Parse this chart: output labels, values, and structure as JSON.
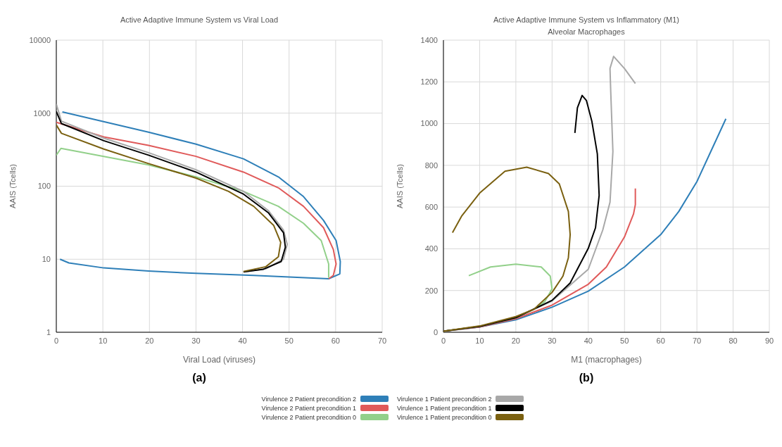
{
  "chart_data": [
    {
      "type": "line",
      "title": "Active Adaptive Immune System vs Viral Load",
      "xlabel": "Viral Load (viruses)",
      "ylabel": "AAIS (Tcells)",
      "annotations": [
        "(a)"
      ],
      "log": "y",
      "xlim": [
        0,
        70
      ],
      "xticks": [
        0,
        10,
        20,
        30,
        40,
        50,
        60,
        70
      ],
      "ylim": [
        1,
        10000
      ],
      "yticks": [
        1,
        10,
        100,
        1000,
        10000
      ],
      "grid": true,
      "legend": "bottom",
      "marker": "none",
      "line_style": "solid",
      "series": [
        {
          "name": "Virulence 2 Patient precondition 2",
          "color": "#2e7fb8",
          "x": [
            1.3,
            19.8,
            30,
            40.2,
            47.7,
            53.1,
            57.4,
            60.1,
            61,
            60.9,
            58.5,
            42.4,
            30,
            19.8,
            10.2,
            2.7,
            0.8
          ],
          "values": [
            1040,
            550,
            376,
            237,
            134,
            72,
            34,
            18,
            9.3,
            6.3,
            5.4,
            6.0,
            6.4,
            6.9,
            7.6,
            8.9,
            10
          ]
        },
        {
          "name": "Virulence 2 Patient precondition 1",
          "color": "#e05a5a",
          "x": [
            0,
            10.2,
            19.8,
            30,
            40.2,
            47.7,
            53.1,
            57.4,
            59.5,
            60.1,
            59.5,
            58.5
          ],
          "values": [
            750,
            473,
            362,
            256,
            156,
            95,
            53,
            27,
            13.6,
            8.6,
            6.0,
            5.4
          ]
        },
        {
          "name": "Virulence 2 Patient precondition 0",
          "color": "#92d08a",
          "x": [
            0,
            1,
            10.2,
            19.8,
            30,
            40.2,
            47.7,
            53.1,
            56.9,
            58.5,
            58.5
          ],
          "values": [
            266,
            330,
            256,
            196,
            134,
            85,
            53,
            31,
            18,
            8.6,
            5.6
          ]
        },
        {
          "name": "Virulence 1 Patient precondition 2",
          "color": "#a8a8a8",
          "x": [
            0,
            1.1,
            10.2,
            19.8,
            30,
            40.2,
            45.6,
            48.8,
            49.6,
            48.8,
            45,
            40.2
          ],
          "values": [
            1330,
            777,
            455,
            288,
            168,
            85,
            46,
            25,
            16,
            10,
            7.4,
            6.7
          ]
        },
        {
          "name": "Virulence 1 Patient precondition 1",
          "color": "#000000",
          "x": [
            0,
            1.1,
            10.2,
            19.8,
            30,
            40.2,
            45.6,
            48.8,
            49.2,
            48.3,
            44.5,
            40.2
          ],
          "values": [
            1055,
            720,
            420,
            266,
            156,
            78,
            43,
            23,
            14.6,
            9.3,
            7.3,
            6.7
          ]
        },
        {
          "name": "Virulence 1 Patient precondition 0",
          "color": "#7a6010",
          "x": [
            0,
            1.1,
            10.2,
            19.8,
            30,
            37,
            42.4,
            46.7,
            48.2,
            47.7,
            45,
            40.2
          ],
          "values": [
            690,
            530,
            322,
            204,
            129,
            85,
            53,
            29,
            17,
            10.8,
            7.9,
            6.8
          ]
        }
      ]
    },
    {
      "type": "line",
      "title": "Active Adaptive Immune System vs Inflammatory (M1) Alveolar Macrophages",
      "xlabel": "M1 (macrophages)",
      "ylabel": "AAIS (Tcells)",
      "annotations": [
        "(b)"
      ],
      "xlim": [
        0,
        90
      ],
      "xticks": [
        0,
        10,
        20,
        30,
        40,
        50,
        60,
        70,
        80,
        90
      ],
      "ylim": [
        0,
        1400
      ],
      "yticks": [
        0,
        200,
        400,
        600,
        800,
        1000,
        1200,
        1400
      ],
      "grid": true,
      "legend": "bottom",
      "marker": "none",
      "line_style": "solid",
      "series": [
        {
          "name": "Virulence 2 Patient precondition 2",
          "color": "#2e7fb8",
          "x": [
            0,
            10,
            20,
            30,
            40,
            50,
            60,
            65,
            70,
            75,
            78
          ],
          "values": [
            5,
            25,
            60,
            120,
            197,
            313,
            468,
            579,
            722,
            910,
            1023
          ]
        },
        {
          "name": "Virulence 2 Patient precondition 1",
          "color": "#e05a5a",
          "x": [
            0,
            10,
            20,
            30,
            40,
            45,
            50,
            52.5,
            53,
            53
          ],
          "values": [
            5,
            25,
            65,
            130,
            230,
            313,
            457,
            567,
            612,
            689
          ]
        },
        {
          "name": "Virulence 2 Patient precondition 0",
          "color": "#92d08a",
          "x": [
            0,
            10,
            20,
            25,
            28,
            30,
            29.5,
            27,
            20,
            13,
            7
          ],
          "values": [
            5,
            28,
            70,
            110,
            147,
            208,
            269,
            313,
            326,
            313,
            271
          ]
        },
        {
          "name": "Virulence 1 Patient precondition 2",
          "color": "#a8a8a8",
          "x": [
            0,
            10,
            20,
            30,
            40,
            44,
            46,
            46.8,
            46.2,
            46,
            47,
            50,
            53
          ],
          "values": [
            5,
            28,
            70,
            150,
            302,
            490,
            623,
            866,
            1154,
            1264,
            1322,
            1264,
            1192
          ]
        },
        {
          "name": "Virulence 1 Patient precondition 1",
          "color": "#000000",
          "x": [
            0,
            10,
            20,
            30,
            35,
            40,
            42,
            43,
            42.5,
            41,
            39.5,
            38.3,
            37,
            36.3
          ],
          "values": [
            5,
            28,
            70,
            153,
            236,
            402,
            501,
            656,
            855,
            1010,
            1110,
            1135,
            1076,
            955
          ]
        },
        {
          "name": "Virulence 1 Patient precondition 0",
          "color": "#7a6010",
          "x": [
            0,
            10,
            20,
            25,
            30,
            33,
            34.5,
            35,
            34.5,
            32,
            29,
            23,
            17,
            10,
            5,
            2.5
          ],
          "values": [
            5,
            30,
            75,
            110,
            191,
            269,
            357,
            468,
            579,
            711,
            761,
            791,
            772,
            667,
            556,
            477
          ]
        }
      ]
    }
  ]
}
